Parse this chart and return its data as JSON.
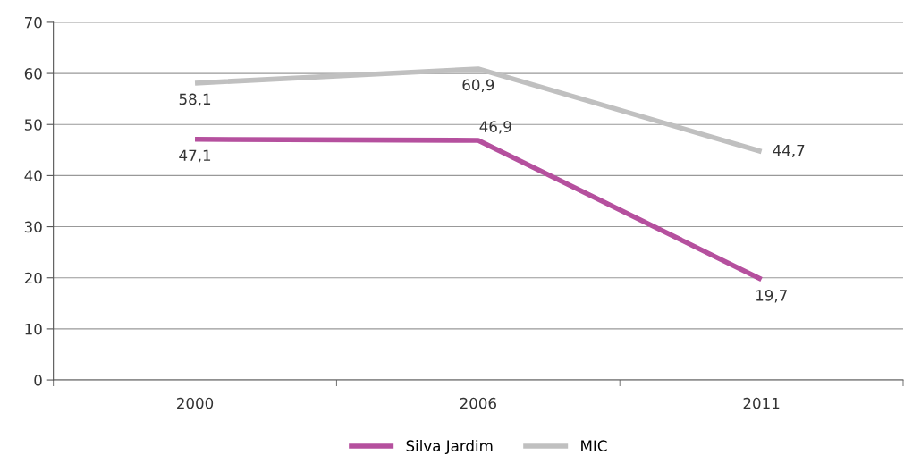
{
  "chart_data": {
    "type": "line",
    "categories": [
      "2000",
      "2006",
      "2011"
    ],
    "series": [
      {
        "name": "Silva Jardim",
        "color": "#b5509e",
        "values": [
          47.1,
          46.9,
          19.7
        ],
        "value_labels": [
          "47,1",
          "46,9",
          "19,7"
        ]
      },
      {
        "name": "MIC",
        "color": "#c0c0c0",
        "values": [
          58.1,
          60.9,
          44.7
        ],
        "value_labels": [
          "58,1",
          "60,9",
          "44,7"
        ]
      }
    ],
    "ylim": [
      0,
      70
    ],
    "yticks": [
      0,
      10,
      20,
      30,
      40,
      50,
      60,
      70
    ],
    "grid": "y",
    "legend": "bottom",
    "marker": "none",
    "line_style": "solid"
  }
}
